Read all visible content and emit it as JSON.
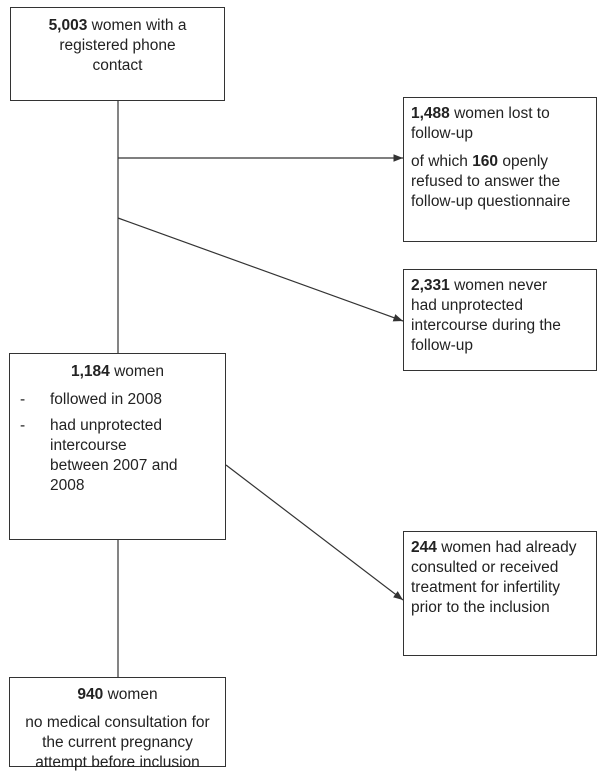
{
  "nodes": [
    {
      "number": "5,003",
      "text": "women with a registered phone contact"
    },
    {
      "number": "1,488",
      "text": "women lost to follow-up",
      "note_prefix": "of which",
      "note_number": "160",
      "note_text": "openly refused to answer the follow-up questionnaire"
    },
    {
      "number": "2,331",
      "text": "women never had unprotected intercourse during the follow-up"
    },
    {
      "number": "1,184",
      "text": "women",
      "items": [
        {
          "marker": "-",
          "text": "followed in 2008"
        },
        {
          "marker": "-",
          "text": "had unprotected intercourse between 2007 and 2008"
        }
      ]
    },
    {
      "number": "244",
      "text": "women had already consulted or received treatment for infertility prior to the inclusion"
    },
    {
      "number": "940",
      "text": "women",
      "subtext": "no medical consultation for the current pregnancy attempt before inclusion"
    }
  ]
}
